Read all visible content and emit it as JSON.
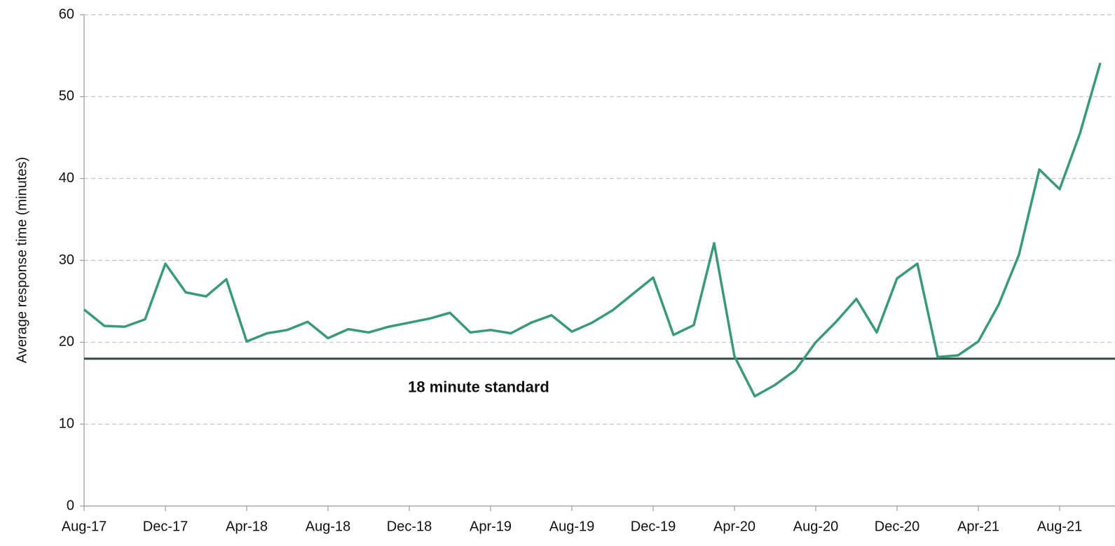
{
  "chart_data": {
    "type": "line",
    "y_label": "Average response time (minutes)",
    "categories": [
      "Aug-17",
      null,
      null,
      null,
      "Dec-17",
      null,
      null,
      null,
      "Apr-18",
      null,
      null,
      null,
      "Aug-18",
      null,
      null,
      null,
      "Dec-18",
      null,
      null,
      null,
      "Apr-19",
      null,
      null,
      null,
      "Aug-19",
      null,
      null,
      null,
      "Dec-19",
      null,
      null,
      null,
      "Apr-20",
      null,
      null,
      null,
      "Aug-20",
      null,
      null,
      null,
      "Dec-20",
      null,
      null,
      null,
      "Apr-21",
      null,
      null,
      null,
      "Aug-21",
      null,
      null
    ],
    "values": [
      24.0,
      22.0,
      21.9,
      22.8,
      29.6,
      26.1,
      25.6,
      27.7,
      20.1,
      21.1,
      21.5,
      22.5,
      20.5,
      21.6,
      21.2,
      21.9,
      22.4,
      22.9,
      23.6,
      21.2,
      21.5,
      21.1,
      22.4,
      23.3,
      21.3,
      22.4,
      23.9,
      25.9,
      27.9,
      20.9,
      22.1,
      32.1,
      18.3,
      13.4,
      14.8,
      16.6,
      20.0,
      22.5,
      25.3,
      21.2,
      27.8,
      29.6,
      18.2,
      18.4,
      20.1,
      24.6,
      30.7,
      41.1,
      38.7,
      45.5,
      54.1
    ],
    "color": "#3a9a78",
    "reference_line": {
      "value": 18,
      "label": "18 minute standard",
      "color": "#2f4a4a"
    },
    "ylim": [
      0,
      60
    ],
    "yticks": [
      0,
      10,
      20,
      30,
      40,
      50,
      60
    ],
    "grid": true
  }
}
